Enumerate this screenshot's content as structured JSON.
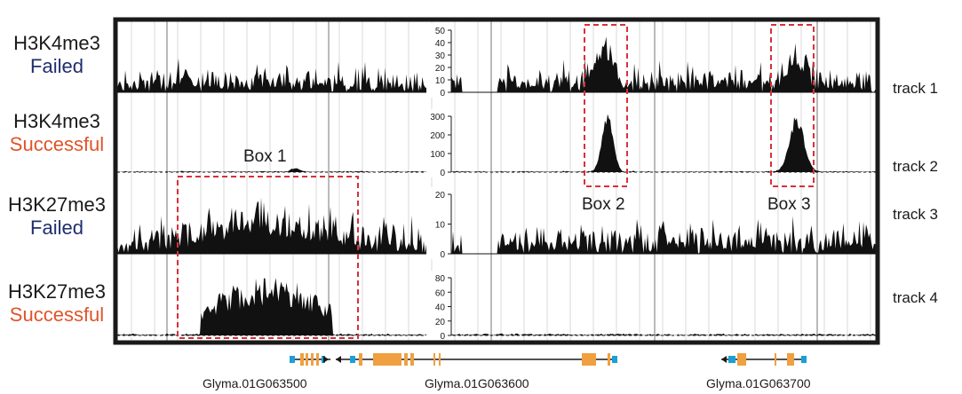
{
  "tracks": [
    {
      "mark": "H3K4me3",
      "status": "Failed",
      "status_color": "#1f2e6e",
      "track_label": "track 1",
      "axis": {
        "max": 50,
        "ticks": [
          "50",
          "40",
          "30",
          "20",
          "10",
          "0"
        ]
      }
    },
    {
      "mark": "H3K4me3",
      "status": "Successful",
      "status_color": "#e0532a",
      "track_label": "track 2",
      "axis": {
        "max": 300,
        "ticks": [
          "300",
          "200",
          "100",
          "0"
        ]
      }
    },
    {
      "mark": "H3K27me3",
      "status": "Failed",
      "status_color": "#1f2e6e",
      "track_label": "track 3",
      "axis": {
        "max": 20,
        "ticks": [
          "20",
          "10",
          "0"
        ]
      }
    },
    {
      "mark": "H3K27me3",
      "status": "Successful",
      "status_color": "#e0532a",
      "track_label": "track 4",
      "axis": {
        "max": 80,
        "ticks": [
          "80",
          "60",
          "40",
          "20",
          "0"
        ]
      }
    }
  ],
  "boxes": [
    {
      "label": "Box 1"
    },
    {
      "label": "Box 2"
    },
    {
      "label": "Box 3"
    }
  ],
  "genes": [
    {
      "name": "Glyma.01G063500"
    },
    {
      "name": "Glyma.01G063600"
    },
    {
      "name": "Glyma.01G063700"
    }
  ],
  "colors": {
    "signal": "#111111",
    "box": "#d9303a",
    "exon": "#f0a040",
    "utr": "#1a9fd6",
    "frame": "#1a1a1a",
    "grid": "#d8d8d8"
  }
}
